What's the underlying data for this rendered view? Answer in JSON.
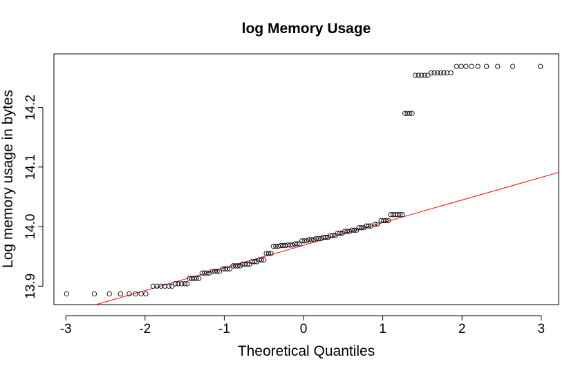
{
  "chart_data": {
    "type": "scatter",
    "title": "log Memory Usage",
    "xlabel": "Theoretical Quantiles",
    "ylabel": "Log memory usage in bytes",
    "xlim": [
      -3.15,
      3.22
    ],
    "ylim": [
      13.869,
      14.29
    ],
    "x_ticks": [
      -3,
      -2,
      -1,
      0,
      1,
      2,
      3
    ],
    "y_ticks": [
      13.9,
      14.0,
      14.1,
      14.2
    ],
    "y_tick_labels": [
      "13.9",
      "14.0",
      "14.1",
      "14.2"
    ],
    "grid": false,
    "legend": "none",
    "point_color": "#000000",
    "line_color": "#ff0000",
    "reference_line": {
      "x": [
        -2.62,
        3.22
      ],
      "y": [
        13.869,
        14.091
      ]
    },
    "series": [
      {
        "values": [
          {
            "x": -2.99,
            "y": 13.887
          },
          {
            "x": -2.64,
            "y": 13.887
          },
          {
            "x": -2.45,
            "y": 13.887
          },
          {
            "x": -2.31,
            "y": 13.887
          },
          {
            "x": -2.2,
            "y": 13.887
          },
          {
            "x": -2.12,
            "y": 13.887
          },
          {
            "x": -2.05,
            "y": 13.887
          },
          {
            "x": -1.99,
            "y": 13.887
          },
          {
            "x": -1.9,
            "y": 13.9
          },
          {
            "x": -1.85,
            "y": 13.9
          },
          {
            "x": -1.8,
            "y": 13.9
          },
          {
            "x": -1.75,
            "y": 13.9
          },
          {
            "x": -1.7,
            "y": 13.9
          },
          {
            "x": -1.66,
            "y": 13.9
          },
          {
            "x": -1.62,
            "y": 13.904
          },
          {
            "x": -1.58,
            "y": 13.904
          },
          {
            "x": -1.54,
            "y": 13.904
          },
          {
            "x": -1.5,
            "y": 13.904
          },
          {
            "x": -1.47,
            "y": 13.904
          },
          {
            "x": -1.44,
            "y": 13.913
          },
          {
            "x": -1.41,
            "y": 13.913
          },
          {
            "x": -1.38,
            "y": 13.913
          },
          {
            "x": -1.35,
            "y": 13.913
          },
          {
            "x": -1.32,
            "y": 13.913
          },
          {
            "x": -1.28,
            "y": 13.922
          },
          {
            "x": -1.25,
            "y": 13.922
          },
          {
            "x": -1.22,
            "y": 13.922
          },
          {
            "x": -1.19,
            "y": 13.922
          },
          {
            "x": -1.15,
            "y": 13.925
          },
          {
            "x": -1.12,
            "y": 13.925
          },
          {
            "x": -1.09,
            "y": 13.925
          },
          {
            "x": -1.06,
            "y": 13.925
          },
          {
            "x": -1.02,
            "y": 13.929
          },
          {
            "x": -0.99,
            "y": 13.929
          },
          {
            "x": -0.96,
            "y": 13.929
          },
          {
            "x": -0.93,
            "y": 13.929
          },
          {
            "x": -0.89,
            "y": 13.934
          },
          {
            "x": -0.86,
            "y": 13.934
          },
          {
            "x": -0.83,
            "y": 13.934
          },
          {
            "x": -0.8,
            "y": 13.934
          },
          {
            "x": -0.77,
            "y": 13.937
          },
          {
            "x": -0.74,
            "y": 13.937
          },
          {
            "x": -0.71,
            "y": 13.937
          },
          {
            "x": -0.68,
            "y": 13.937
          },
          {
            "x": -0.65,
            "y": 13.941
          },
          {
            "x": -0.62,
            "y": 13.941
          },
          {
            "x": -0.59,
            "y": 13.941
          },
          {
            "x": -0.56,
            "y": 13.944
          },
          {
            "x": -0.53,
            "y": 13.944
          },
          {
            "x": -0.5,
            "y": 13.944
          },
          {
            "x": -0.47,
            "y": 13.955
          },
          {
            "x": -0.44,
            "y": 13.955
          },
          {
            "x": -0.41,
            "y": 13.955
          },
          {
            "x": -0.38,
            "y": 13.967
          },
          {
            "x": -0.35,
            "y": 13.967
          },
          {
            "x": -0.32,
            "y": 13.967
          },
          {
            "x": -0.29,
            "y": 13.968
          },
          {
            "x": -0.26,
            "y": 13.968
          },
          {
            "x": -0.23,
            "y": 13.968
          },
          {
            "x": -0.2,
            "y": 13.969
          },
          {
            "x": -0.17,
            "y": 13.969
          },
          {
            "x": -0.14,
            "y": 13.969
          },
          {
            "x": -0.11,
            "y": 13.971
          },
          {
            "x": -0.08,
            "y": 13.971
          },
          {
            "x": -0.05,
            "y": 13.971
          },
          {
            "x": -0.02,
            "y": 13.976
          },
          {
            "x": 0.01,
            "y": 13.976
          },
          {
            "x": 0.04,
            "y": 13.976
          },
          {
            "x": 0.07,
            "y": 13.978
          },
          {
            "x": 0.1,
            "y": 13.978
          },
          {
            "x": 0.13,
            "y": 13.978
          },
          {
            "x": 0.16,
            "y": 13.98
          },
          {
            "x": 0.19,
            "y": 13.98
          },
          {
            "x": 0.22,
            "y": 13.98
          },
          {
            "x": 0.25,
            "y": 13.982
          },
          {
            "x": 0.28,
            "y": 13.982
          },
          {
            "x": 0.31,
            "y": 13.982
          },
          {
            "x": 0.34,
            "y": 13.985
          },
          {
            "x": 0.37,
            "y": 13.985
          },
          {
            "x": 0.4,
            "y": 13.985
          },
          {
            "x": 0.43,
            "y": 13.989
          },
          {
            "x": 0.46,
            "y": 13.989
          },
          {
            "x": 0.49,
            "y": 13.989
          },
          {
            "x": 0.52,
            "y": 13.992
          },
          {
            "x": 0.55,
            "y": 13.992
          },
          {
            "x": 0.58,
            "y": 13.992
          },
          {
            "x": 0.61,
            "y": 13.994
          },
          {
            "x": 0.64,
            "y": 13.994
          },
          {
            "x": 0.67,
            "y": 13.994
          },
          {
            "x": 0.7,
            "y": 13.998
          },
          {
            "x": 0.73,
            "y": 13.998
          },
          {
            "x": 0.76,
            "y": 13.998
          },
          {
            "x": 0.79,
            "y": 14.001
          },
          {
            "x": 0.82,
            "y": 14.001
          },
          {
            "x": 0.85,
            "y": 14.001
          },
          {
            "x": 0.9,
            "y": 14.004
          },
          {
            "x": 0.93,
            "y": 14.004
          },
          {
            "x": 0.98,
            "y": 14.01
          },
          {
            "x": 1.01,
            "y": 14.01
          },
          {
            "x": 1.04,
            "y": 14.01
          },
          {
            "x": 1.07,
            "y": 14.01
          },
          {
            "x": 1.1,
            "y": 14.02
          },
          {
            "x": 1.13,
            "y": 14.02
          },
          {
            "x": 1.16,
            "y": 14.02
          },
          {
            "x": 1.19,
            "y": 14.02
          },
          {
            "x": 1.22,
            "y": 14.02
          },
          {
            "x": 1.25,
            "y": 14.02
          },
          {
            "x": 1.28,
            "y": 14.19
          },
          {
            "x": 1.31,
            "y": 14.19
          },
          {
            "x": 1.34,
            "y": 14.19
          },
          {
            "x": 1.37,
            "y": 14.19
          },
          {
            "x": 1.41,
            "y": 14.254
          },
          {
            "x": 1.45,
            "y": 14.254
          },
          {
            "x": 1.49,
            "y": 14.254
          },
          {
            "x": 1.53,
            "y": 14.254
          },
          {
            "x": 1.57,
            "y": 14.254
          },
          {
            "x": 1.61,
            "y": 14.258
          },
          {
            "x": 1.65,
            "y": 14.258
          },
          {
            "x": 1.69,
            "y": 14.258
          },
          {
            "x": 1.73,
            "y": 14.258
          },
          {
            "x": 1.77,
            "y": 14.258
          },
          {
            "x": 1.81,
            "y": 14.258
          },
          {
            "x": 1.86,
            "y": 14.258
          },
          {
            "x": 1.93,
            "y": 14.269
          },
          {
            "x": 1.99,
            "y": 14.269
          },
          {
            "x": 2.05,
            "y": 14.269
          },
          {
            "x": 2.12,
            "y": 14.269
          },
          {
            "x": 2.2,
            "y": 14.269
          },
          {
            "x": 2.31,
            "y": 14.269
          },
          {
            "x": 2.45,
            "y": 14.269
          },
          {
            "x": 2.64,
            "y": 14.269
          },
          {
            "x": 2.99,
            "y": 14.269
          }
        ]
      }
    ]
  }
}
